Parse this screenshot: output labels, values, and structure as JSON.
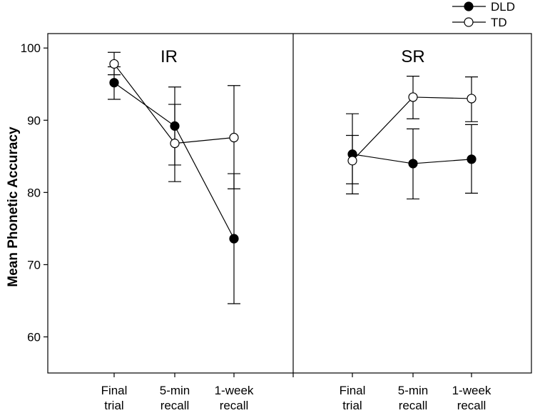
{
  "chart_data": {
    "type": "line",
    "ylabel": "Mean Phonetic Accuracy",
    "ylim": [
      55,
      102
    ],
    "yticks": [
      60,
      70,
      80,
      90,
      100
    ],
    "categories": [
      [
        "Final",
        "trial"
      ],
      [
        "5-min",
        "recall"
      ],
      [
        "1-week",
        "recall"
      ]
    ],
    "legend": {
      "position": "top-right",
      "entries": [
        {
          "name": "DLD",
          "marker": "filled-circle"
        },
        {
          "name": "TD",
          "marker": "open-circle"
        }
      ]
    },
    "panels": [
      {
        "title": "IR",
        "series": [
          {
            "name": "DLD",
            "values": [
              95.2,
              89.2,
              73.6
            ],
            "error_low": [
              92.9,
              83.8,
              64.6
            ],
            "error_high": [
              97.4,
              94.6,
              82.6
            ]
          },
          {
            "name": "TD",
            "values": [
              97.8,
              86.8,
              87.6
            ],
            "error_low": [
              96.3,
              81.5,
              80.5
            ],
            "error_high": [
              99.4,
              92.2,
              94.8
            ]
          }
        ]
      },
      {
        "title": "SR",
        "series": [
          {
            "name": "DLD",
            "values": [
              85.3,
              84.0,
              84.6
            ],
            "error_low": [
              79.8,
              79.1,
              79.9
            ],
            "error_high": [
              90.9,
              88.8,
              89.4
            ]
          },
          {
            "name": "TD",
            "values": [
              84.4,
              93.2,
              93.0
            ],
            "error_low": [
              81.2,
              90.2,
              89.8
            ],
            "error_high": [
              87.9,
              96.1,
              96.0
            ]
          }
        ]
      }
    ]
  }
}
